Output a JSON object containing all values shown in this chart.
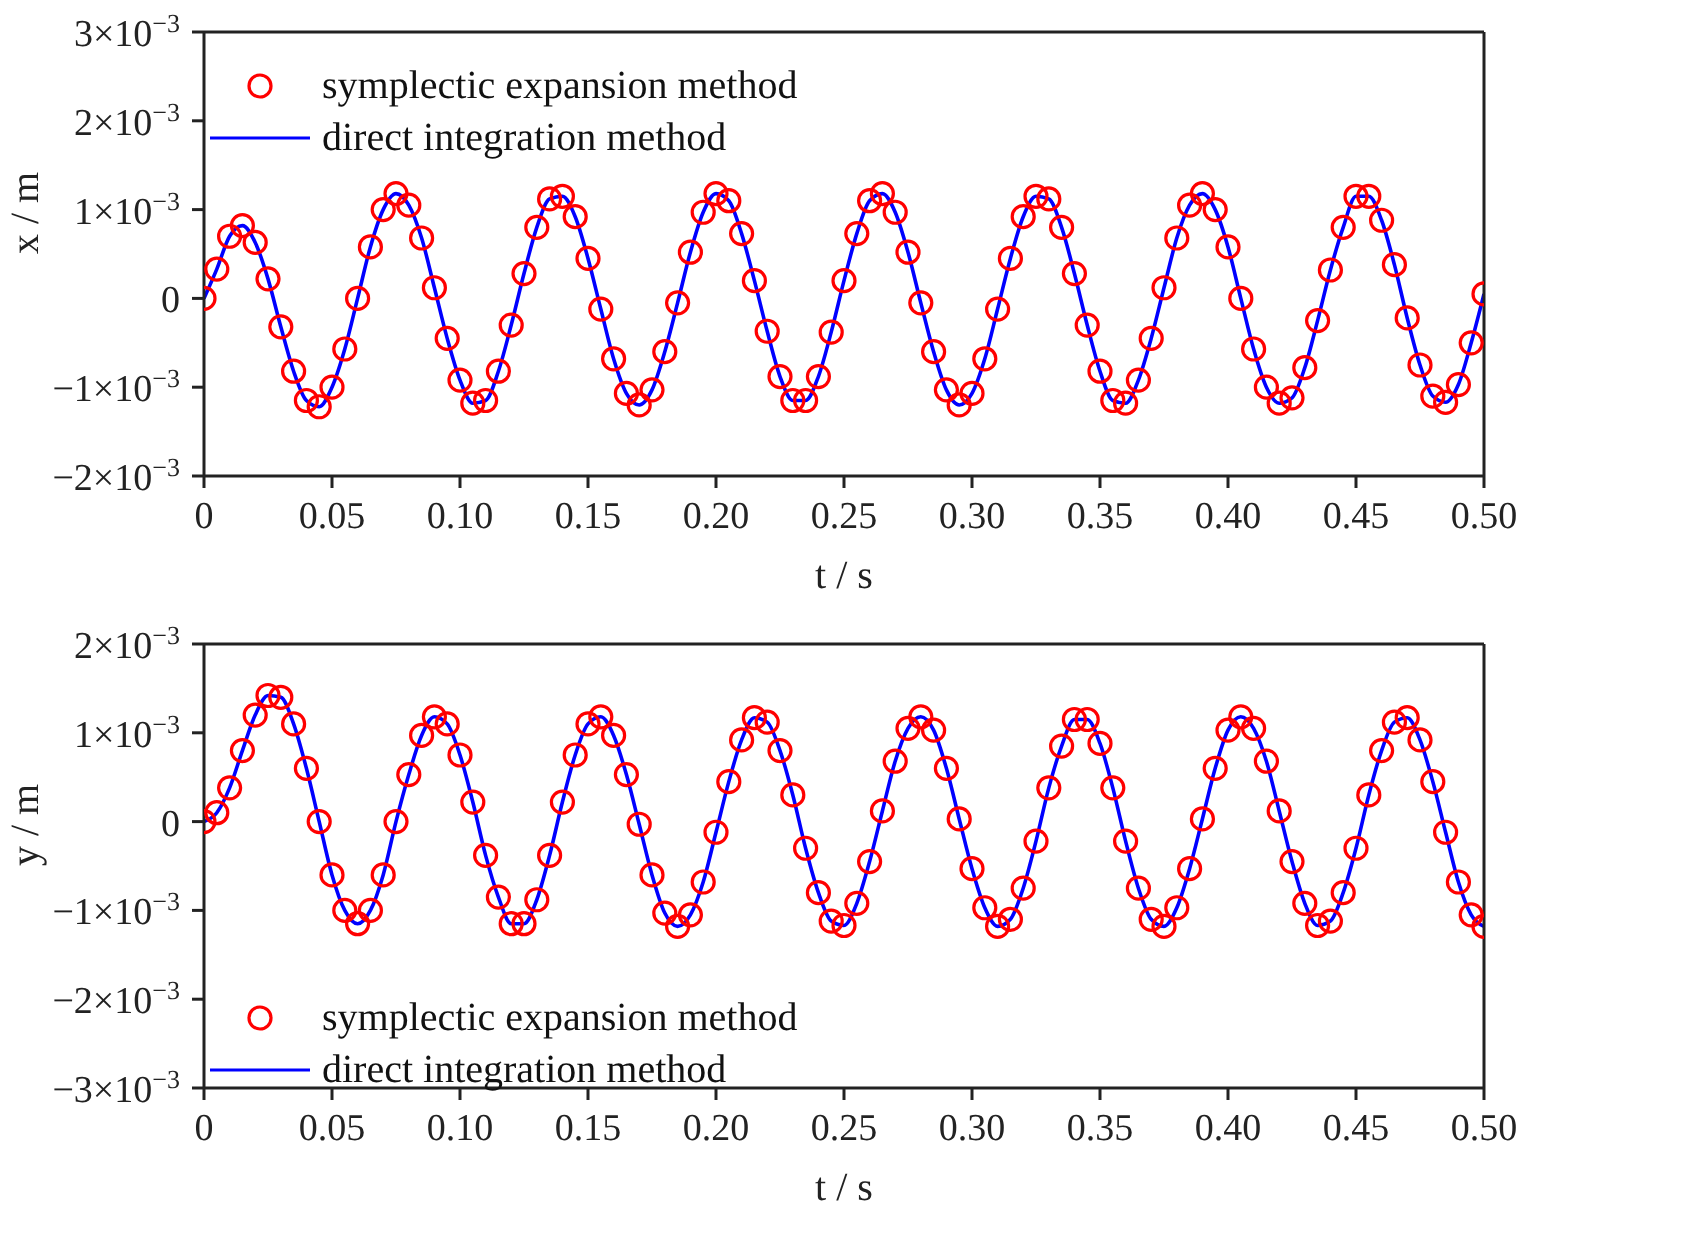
{
  "chart_data": [
    {
      "type": "line",
      "xlabel": "t / s",
      "ylabel": "x / m",
      "legend": "top left",
      "xlim": [
        0,
        0.5
      ],
      "xticks": [
        {
          "value": 0,
          "label": "0"
        },
        {
          "value": 0.05,
          "label": "0.05"
        },
        {
          "value": 0.1,
          "label": "0.10"
        },
        {
          "value": 0.15,
          "label": "0.15"
        },
        {
          "value": 0.2,
          "label": "0.20"
        },
        {
          "value": 0.25,
          "label": "0.25"
        },
        {
          "value": 0.3,
          "label": "0.30"
        },
        {
          "value": 0.35,
          "label": "0.35"
        },
        {
          "value": 0.4,
          "label": "0.40"
        },
        {
          "value": 0.45,
          "label": "0.45"
        },
        {
          "value": 0.5,
          "label": "0.50"
        }
      ],
      "ylim": [
        -0.002,
        0.003
      ],
      "yticks": [
        {
          "value": -0.002,
          "label": "−2×10$^{−3}$"
        },
        {
          "value": -0.001,
          "label": "−1×10$^{−3}$"
        },
        {
          "value": 0,
          "label": "0"
        },
        {
          "value": 0.001,
          "label": "1×10$^{−3}$"
        },
        {
          "value": 0.002,
          "label": "2×10$^{−3}$"
        },
        {
          "value": 0.003,
          "label": "3×10$^{−3}$"
        }
      ],
      "x": [
        0,
        0.005,
        0.01,
        0.015,
        0.02,
        0.025,
        0.03,
        0.035,
        0.04,
        0.045,
        0.05,
        0.055,
        0.06,
        0.065,
        0.07,
        0.075,
        0.08,
        0.085,
        0.09,
        0.095,
        0.1,
        0.105,
        0.11,
        0.115,
        0.12,
        0.125,
        0.13,
        0.135,
        0.14,
        0.145,
        0.15,
        0.155,
        0.16,
        0.165,
        0.17,
        0.175,
        0.18,
        0.185,
        0.19,
        0.195,
        0.2,
        0.205,
        0.21,
        0.215,
        0.22,
        0.225,
        0.23,
        0.235,
        0.24,
        0.245,
        0.25,
        0.255,
        0.26,
        0.265,
        0.27,
        0.275,
        0.28,
        0.285,
        0.29,
        0.295,
        0.3,
        0.305,
        0.31,
        0.315,
        0.32,
        0.325,
        0.33,
        0.335,
        0.34,
        0.345,
        0.35,
        0.355,
        0.36,
        0.365,
        0.37,
        0.375,
        0.38,
        0.385,
        0.39,
        0.395,
        0.4,
        0.405,
        0.41,
        0.415,
        0.42,
        0.425,
        0.43,
        0.435,
        0.44,
        0.445,
        0.45,
        0.455,
        0.46,
        0.465,
        0.47,
        0.475,
        0.48,
        0.485,
        0.49,
        0.495,
        0.5
      ],
      "series": [
        {
          "name": "symplectic expansion method",
          "type": "scatter",
          "marker": "circle",
          "color": "#ff0000",
          "values": [
            0,
            0.00033,
            0.0007,
            0.00082,
            0.00063,
            0.00022,
            -0.00032,
            -0.00082,
            -0.00115,
            -0.00122,
            -0.001,
            -0.00057,
            0,
            0.00058,
            0.001,
            0.00118,
            0.00105,
            0.00068,
            0.00012,
            -0.00045,
            -0.00092,
            -0.00118,
            -0.00115,
            -0.00082,
            -0.0003,
            0.00028,
            0.0008,
            0.00112,
            0.00115,
            0.00092,
            0.00045,
            -0.00012,
            -0.00068,
            -0.00107,
            -0.0012,
            -0.00103,
            -0.0006,
            -5e-05,
            0.00052,
            0.00097,
            0.00118,
            0.0011,
            0.00073,
            0.0002,
            -0.00037,
            -0.00088,
            -0.00115,
            -0.00115,
            -0.00088,
            -0.00038,
            0.0002,
            0.00073,
            0.0011,
            0.00118,
            0.00097,
            0.00052,
            -5e-05,
            -0.0006,
            -0.00103,
            -0.0012,
            -0.00107,
            -0.00068,
            -0.00012,
            0.00045,
            0.00092,
            0.00115,
            0.00112,
            0.0008,
            0.00028,
            -0.0003,
            -0.00082,
            -0.00115,
            -0.00118,
            -0.00092,
            -0.00045,
            0.00012,
            0.00068,
            0.00105,
            0.00118,
            0.001,
            0.00058,
            0,
            -0.00057,
            -0.001,
            -0.00118,
            -0.00112,
            -0.00078,
            -0.00025,
            0.00032,
            0.0008,
            0.00115,
            0.00115,
            0.00088,
            0.00038,
            -0.00022,
            -0.00075,
            -0.0011,
            -0.00117,
            -0.00097,
            -0.0005,
            5e-05
          ]
        },
        {
          "name": "direct integration method",
          "type": "line",
          "marker": "none",
          "line_style": "solid",
          "color": "#0000ff",
          "values": [
            0,
            0.00033,
            0.0007,
            0.00082,
            0.00063,
            0.00022,
            -0.00032,
            -0.00082,
            -0.00115,
            -0.00122,
            -0.001,
            -0.00057,
            0,
            0.00058,
            0.001,
            0.00118,
            0.00105,
            0.00068,
            0.00012,
            -0.00045,
            -0.00092,
            -0.00118,
            -0.00115,
            -0.00082,
            -0.0003,
            0.00028,
            0.0008,
            0.00112,
            0.00115,
            0.00092,
            0.00045,
            -0.00012,
            -0.00068,
            -0.00107,
            -0.0012,
            -0.00103,
            -0.0006,
            -5e-05,
            0.00052,
            0.00097,
            0.00118,
            0.0011,
            0.00073,
            0.0002,
            -0.00037,
            -0.00088,
            -0.00115,
            -0.00115,
            -0.00088,
            -0.00038,
            0.0002,
            0.00073,
            0.0011,
            0.00118,
            0.00097,
            0.00052,
            -5e-05,
            -0.0006,
            -0.00103,
            -0.0012,
            -0.00107,
            -0.00068,
            -0.00012,
            0.00045,
            0.00092,
            0.00115,
            0.00112,
            0.0008,
            0.00028,
            -0.0003,
            -0.00082,
            -0.00115,
            -0.00118,
            -0.00092,
            -0.00045,
            0.00012,
            0.00068,
            0.00105,
            0.00118,
            0.001,
            0.00058,
            0,
            -0.00057,
            -0.001,
            -0.00118,
            -0.00112,
            -0.00078,
            -0.00025,
            0.00032,
            0.0008,
            0.00115,
            0.00115,
            0.00088,
            0.00038,
            -0.00022,
            -0.00075,
            -0.0011,
            -0.00117,
            -0.00097,
            -0.0005,
            5e-05
          ]
        }
      ]
    },
    {
      "type": "line",
      "xlabel": "t / s",
      "ylabel": "y / m",
      "legend": "bottom left",
      "xlim": [
        0,
        0.5
      ],
      "xticks": [
        {
          "value": 0,
          "label": "0"
        },
        {
          "value": 0.05,
          "label": "0.05"
        },
        {
          "value": 0.1,
          "label": "0.10"
        },
        {
          "value": 0.15,
          "label": "0.15"
        },
        {
          "value": 0.2,
          "label": "0.20"
        },
        {
          "value": 0.25,
          "label": "0.25"
        },
        {
          "value": 0.3,
          "label": "0.30"
        },
        {
          "value": 0.35,
          "label": "0.35"
        },
        {
          "value": 0.4,
          "label": "0.40"
        },
        {
          "value": 0.45,
          "label": "0.45"
        },
        {
          "value": 0.5,
          "label": "0.50"
        }
      ],
      "ylim": [
        -0.003,
        0.002
      ],
      "yticks": [
        {
          "value": -0.003,
          "label": "−3×10$^{−3}$"
        },
        {
          "value": -0.002,
          "label": "−2×10$^{−3}$"
        },
        {
          "value": -0.001,
          "label": "−1×10$^{−3}$"
        },
        {
          "value": 0,
          "label": "0"
        },
        {
          "value": 0.001,
          "label": "1×10$^{−3}$"
        },
        {
          "value": 0.002,
          "label": "2×10$^{−3}$"
        }
      ],
      "x": [
        0,
        0.005,
        0.01,
        0.015,
        0.02,
        0.025,
        0.03,
        0.035,
        0.04,
        0.045,
        0.05,
        0.055,
        0.06,
        0.065,
        0.07,
        0.075,
        0.08,
        0.085,
        0.09,
        0.095,
        0.1,
        0.105,
        0.11,
        0.115,
        0.12,
        0.125,
        0.13,
        0.135,
        0.14,
        0.145,
        0.15,
        0.155,
        0.16,
        0.165,
        0.17,
        0.175,
        0.18,
        0.185,
        0.19,
        0.195,
        0.2,
        0.205,
        0.21,
        0.215,
        0.22,
        0.225,
        0.23,
        0.235,
        0.24,
        0.245,
        0.25,
        0.255,
        0.26,
        0.265,
        0.27,
        0.275,
        0.28,
        0.285,
        0.29,
        0.295,
        0.3,
        0.305,
        0.31,
        0.315,
        0.32,
        0.325,
        0.33,
        0.335,
        0.34,
        0.345,
        0.35,
        0.355,
        0.36,
        0.365,
        0.37,
        0.375,
        0.38,
        0.385,
        0.39,
        0.395,
        0.4,
        0.405,
        0.41,
        0.415,
        0.42,
        0.425,
        0.43,
        0.435,
        0.44,
        0.445,
        0.45,
        0.455,
        0.46,
        0.465,
        0.47,
        0.475,
        0.48,
        0.485,
        0.49,
        0.495,
        0.5
      ],
      "series": [
        {
          "name": "symplectic expansion method",
          "type": "scatter",
          "marker": "circle",
          "color": "#ff0000",
          "values": [
            0,
            0.0001,
            0.00038,
            0.0008,
            0.0012,
            0.00142,
            0.0014,
            0.0011,
            0.0006,
            0,
            -0.0006,
            -0.001,
            -0.00115,
            -0.001,
            -0.0006,
            0,
            0.00053,
            0.00097,
            0.00118,
            0.0011,
            0.00075,
            0.00022,
            -0.00038,
            -0.00085,
            -0.00115,
            -0.00115,
            -0.00088,
            -0.00038,
            0.00022,
            0.00075,
            0.0011,
            0.00118,
            0.00097,
            0.00053,
            -3e-05,
            -0.0006,
            -0.00103,
            -0.00118,
            -0.00105,
            -0.00068,
            -0.00012,
            0.00045,
            0.00092,
            0.00117,
            0.00112,
            0.0008,
            0.0003,
            -0.0003,
            -0.0008,
            -0.00112,
            -0.00117,
            -0.00092,
            -0.00045,
            0.00012,
            0.00068,
            0.00105,
            0.00118,
            0.00103,
            0.0006,
            3e-05,
            -0.00053,
            -0.00097,
            -0.00118,
            -0.0011,
            -0.00075,
            -0.00022,
            0.00038,
            0.00085,
            0.00115,
            0.00115,
            0.00088,
            0.00038,
            -0.00022,
            -0.00075,
            -0.0011,
            -0.00118,
            -0.00097,
            -0.00053,
            3e-05,
            0.0006,
            0.00103,
            0.00118,
            0.00105,
            0.00068,
            0.00012,
            -0.00045,
            -0.00092,
            -0.00117,
            -0.00112,
            -0.0008,
            -0.0003,
            0.0003,
            0.0008,
            0.00112,
            0.00117,
            0.00092,
            0.00045,
            -0.00012,
            -0.00068,
            -0.00105,
            -0.00118
          ]
        },
        {
          "name": "direct integration method",
          "type": "line",
          "marker": "none",
          "line_style": "solid",
          "color": "#0000ff",
          "values": [
            0,
            0.0001,
            0.00038,
            0.0008,
            0.0012,
            0.00142,
            0.0014,
            0.0011,
            0.0006,
            0,
            -0.0006,
            -0.001,
            -0.00115,
            -0.001,
            -0.0006,
            0,
            0.00053,
            0.00097,
            0.00118,
            0.0011,
            0.00075,
            0.00022,
            -0.00038,
            -0.00085,
            -0.00115,
            -0.00115,
            -0.00088,
            -0.00038,
            0.00022,
            0.00075,
            0.0011,
            0.00118,
            0.00097,
            0.00053,
            -3e-05,
            -0.0006,
            -0.00103,
            -0.00118,
            -0.00105,
            -0.00068,
            -0.00012,
            0.00045,
            0.00092,
            0.00117,
            0.00112,
            0.0008,
            0.0003,
            -0.0003,
            -0.0008,
            -0.00112,
            -0.00117,
            -0.00092,
            -0.00045,
            0.00012,
            0.00068,
            0.00105,
            0.00118,
            0.00103,
            0.0006,
            3e-05,
            -0.00053,
            -0.00097,
            -0.00118,
            -0.0011,
            -0.00075,
            -0.00022,
            0.00038,
            0.00085,
            0.00115,
            0.00115,
            0.00088,
            0.00038,
            -0.00022,
            -0.00075,
            -0.0011,
            -0.00118,
            -0.00097,
            -0.00053,
            3e-05,
            0.0006,
            0.00103,
            0.00118,
            0.00105,
            0.00068,
            0.00012,
            -0.00045,
            -0.00092,
            -0.00117,
            -0.00112,
            -0.0008,
            -0.0003,
            0.0003,
            0.0008,
            0.00112,
            0.00117,
            0.00092,
            0.00045,
            -0.00012,
            -0.00068,
            -0.00105,
            -0.00118
          ]
        }
      ]
    }
  ]
}
